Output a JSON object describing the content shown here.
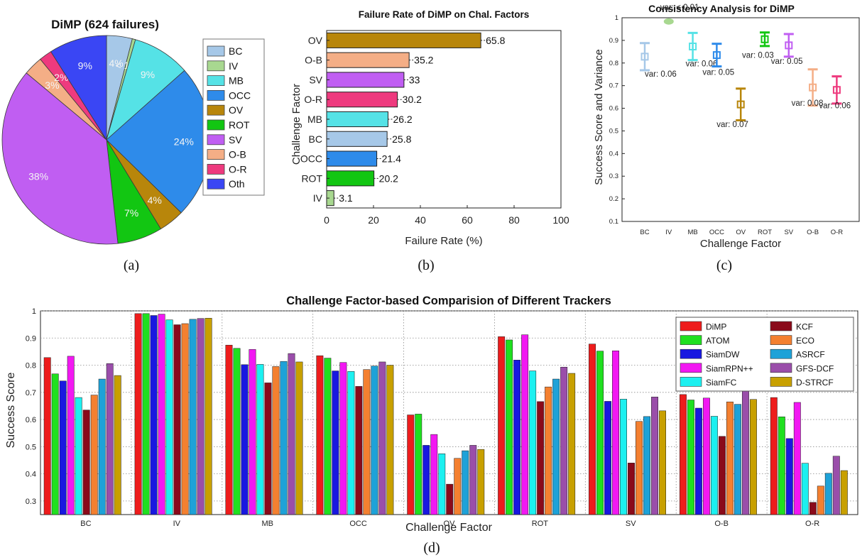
{
  "colors": {
    "BC": "#a6c8e8",
    "IV": "#a8d890",
    "MB": "#55e2e6",
    "OCC": "#2e8bea",
    "OV": "#b8860b",
    "ROT": "#12c612",
    "SV": "#c05ef2",
    "O-B": "#f4ae86",
    "O-R": "#ee3a7e",
    "Oth": "#3a46f4"
  },
  "panels": {
    "a": "(a)",
    "b": "(b)",
    "c": "(c)",
    "d": "(d)"
  },
  "chart_data": [
    {
      "type": "pie",
      "title": "DiMP (624 failures)",
      "legend_placement": "right",
      "labels": [
        "BC",
        "IV",
        "MB",
        "OCC",
        "OV",
        "ROT",
        "SV",
        "O-B",
        "O-R",
        "Oth"
      ],
      "values": [
        4,
        0.5,
        9,
        24,
        4,
        7,
        38,
        3,
        2,
        9
      ],
      "slice_labels": [
        "4%",
        "< 1%",
        "9%",
        "24%",
        "4%",
        "7%",
        "38%",
        "3%",
        "2%",
        "9%"
      ]
    },
    {
      "type": "bar",
      "orientation": "horizontal",
      "title": "Failure Rate of DiMP on Chal. Factors",
      "xlabel": "Failure Rate (%)",
      "ylabel": "Challenge Factor",
      "xlim": [
        0,
        100
      ],
      "xticks": [
        0,
        20,
        40,
        60,
        80,
        100
      ],
      "categories": [
        "OV",
        "O-B",
        "SV",
        "O-R",
        "MB",
        "BC",
        "OCC",
        "ROT",
        "IV"
      ],
      "values": [
        65.8,
        35.2,
        33,
        30.2,
        26.2,
        25.8,
        21.4,
        20.2,
        3.1
      ],
      "value_labels": [
        "65.8",
        "35.2",
        "33",
        "30.2",
        "26.2",
        "25.8",
        "21.4",
        "20.2",
        "3.1"
      ]
    },
    {
      "type": "scatter",
      "title": "Consistency Analysis for DiMP",
      "xlabel": "Challenge Factor",
      "ylabel": "Success Score and Variance",
      "ylim": [
        0.1,
        1
      ],
      "yticks": [
        "0.1",
        "0.2",
        "0.3",
        "0.4",
        "0.5",
        "0.6",
        "0.7",
        "0.8",
        "0.9",
        "1"
      ],
      "categories": [
        "BC",
        "IV",
        "MB",
        "OCC",
        "OV",
        "ROT",
        "SV",
        "O-B",
        "O-R"
      ],
      "values": [
        0.828,
        0.99,
        0.873,
        0.835,
        0.617,
        0.905,
        0.878,
        0.692,
        0.681
      ],
      "variance": [
        0.06,
        0.005,
        0.06,
        0.05,
        0.07,
        0.03,
        0.05,
        0.08,
        0.06
      ],
      "annotations": [
        "var: 0.06",
        "var: < 0.01",
        "var: 0.06",
        "var: 0.05",
        "var: 0.07",
        "var: 0.03",
        "var: 0.05",
        "var: 0.08",
        "var: 0.06"
      ]
    },
    {
      "type": "bar",
      "title": "Challenge Factor-based Comparision of Different Trackers",
      "xlabel": "Challenge Factor",
      "ylabel": "Success Score",
      "ylim": [
        0.25,
        1
      ],
      "yticks": [
        "0.3",
        "0.4",
        "0.5",
        "0.6",
        "0.7",
        "0.8",
        "0.9",
        "1"
      ],
      "grid": true,
      "legend_placement": "top-right",
      "categories": [
        "BC",
        "IV",
        "MB",
        "OCC",
        "OV",
        "ROT",
        "SV",
        "O-B",
        "O-R"
      ],
      "series": [
        {
          "name": "DiMP",
          "color": "#ee1c1c",
          "values": [
            0.828,
            0.99,
            0.874,
            0.835,
            0.617,
            0.905,
            0.878,
            0.692,
            0.681
          ]
        },
        {
          "name": "ATOM",
          "color": "#1fe01f",
          "values": [
            0.768,
            0.99,
            0.862,
            0.826,
            0.62,
            0.893,
            0.852,
            0.672,
            0.61
          ]
        },
        {
          "name": "SiamDW",
          "color": "#1818e0",
          "values": [
            0.742,
            0.983,
            0.802,
            0.779,
            0.505,
            0.819,
            0.667,
            0.642,
            0.53
          ]
        },
        {
          "name": "SiamRPN++",
          "color": "#f218f2",
          "values": [
            0.833,
            0.988,
            0.858,
            0.81,
            0.545,
            0.912,
            0.853,
            0.679,
            0.663
          ]
        },
        {
          "name": "SiamFC",
          "color": "#1cf0f0",
          "values": [
            0.681,
            0.967,
            0.803,
            0.777,
            0.474,
            0.779,
            0.675,
            0.612,
            0.439
          ]
        },
        {
          "name": "KCF",
          "color": "#8a0a1a",
          "values": [
            0.635,
            0.949,
            0.735,
            0.722,
            0.362,
            0.666,
            0.44,
            0.538,
            0.295
          ]
        },
        {
          "name": "ECO",
          "color": "#f48030",
          "values": [
            0.69,
            0.953,
            0.795,
            0.784,
            0.457,
            0.72,
            0.593,
            0.665,
            0.355
          ]
        },
        {
          "name": "ASRCF",
          "color": "#1ea2d8",
          "values": [
            0.749,
            0.969,
            0.814,
            0.797,
            0.485,
            0.749,
            0.611,
            0.656,
            0.402
          ]
        },
        {
          "name": "GFS-DCF",
          "color": "#9a4eaa",
          "values": [
            0.806,
            0.972,
            0.843,
            0.812,
            0.505,
            0.793,
            0.683,
            0.708,
            0.465
          ]
        },
        {
          "name": "D-STRCF",
          "color": "#c8a000",
          "values": [
            0.762,
            0.973,
            0.812,
            0.8,
            0.49,
            0.77,
            0.632,
            0.674,
            0.412
          ]
        }
      ]
    }
  ]
}
